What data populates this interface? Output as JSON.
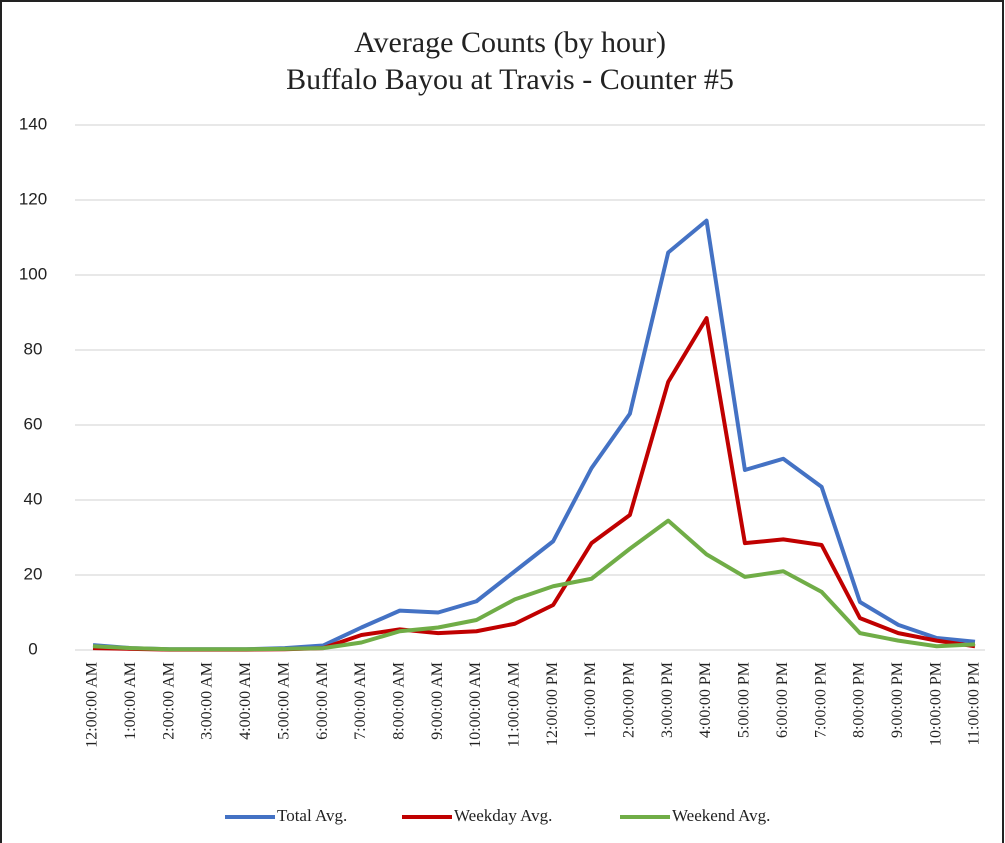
{
  "chart_data": {
    "type": "line",
    "title": [
      "Average Counts (by hour)",
      "Buffalo Bayou at Travis - Counter #5"
    ],
    "categories": [
      "12:00:00 AM",
      "1:00:00 AM",
      "2:00:00 AM",
      "3:00:00 AM",
      "4:00:00 AM",
      "5:00:00 AM",
      "6:00:00 AM",
      "7:00:00 AM",
      "8:00:00 AM",
      "9:00:00 AM",
      "10:00:00 AM",
      "11:00:00 AM",
      "12:00:00 PM",
      "1:00:00 PM",
      "2:00:00 PM",
      "3:00:00 PM",
      "4:00:00 PM",
      "5:00:00 PM",
      "6:00:00 PM",
      "7:00:00 PM",
      "8:00:00 PM",
      "9:00:00 PM",
      "10:00:00 PM",
      "11:00:00 PM"
    ],
    "series": [
      {
        "name": "Total Avg.",
        "color": "#4472c4",
        "values": [
          1.3,
          0.5,
          0.2,
          0.2,
          0.2,
          0.5,
          1.2,
          6,
          10.5,
          10,
          13,
          21,
          29,
          48.5,
          63,
          106,
          114.5,
          48,
          51,
          43.5,
          12.8,
          6.7,
          3.2,
          2.2
        ]
      },
      {
        "name": "Weekday Avg.",
        "color": "#c00000",
        "values": [
          0.5,
          0.3,
          0.1,
          0.1,
          0.1,
          0.2,
          0.5,
          4,
          5.5,
          4.5,
          5,
          7,
          12,
          28.5,
          36,
          71.5,
          88.5,
          28.5,
          29.5,
          28,
          8.5,
          4.5,
          2.5,
          1
        ]
      },
      {
        "name": "Weekend Avg.",
        "color": "#70ad47",
        "values": [
          1,
          0.5,
          0.2,
          0.2,
          0.2,
          0.3,
          0.5,
          2,
          5,
          6,
          8,
          13.5,
          17,
          19,
          27,
          34.5,
          25.5,
          19.5,
          21,
          15.5,
          4.5,
          2.5,
          1,
          1.5
        ]
      }
    ],
    "ylim": [
      0,
      140
    ],
    "yticks": [
      0,
      20,
      40,
      60,
      80,
      100,
      120,
      140
    ],
    "grid": true,
    "legend": "bottom"
  }
}
